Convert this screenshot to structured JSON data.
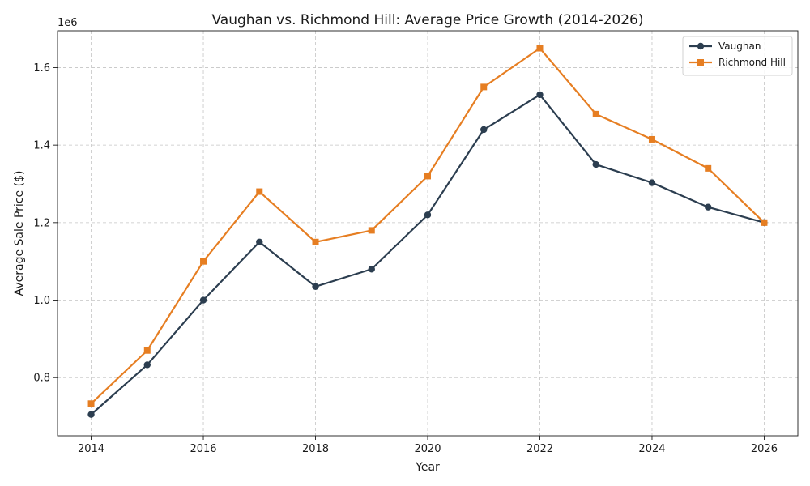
{
  "chart_data": {
    "type": "line",
    "title": "Vaughan vs. Richmond Hill: Average Price Growth (2014-2026)",
    "xlabel": "Year",
    "ylabel": "Average Sale Price ($)",
    "y_offset_label": "1e6",
    "xlim": [
      2013.4,
      2026.6
    ],
    "ylim": [
      650000,
      1695000
    ],
    "x_ticks": [
      2014,
      2016,
      2018,
      2020,
      2022,
      2024,
      2026
    ],
    "y_ticks": [
      800000,
      1000000,
      1200000,
      1400000,
      1600000
    ],
    "y_tick_labels": [
      "0.8",
      "1.0",
      "1.2",
      "1.4",
      "1.6"
    ],
    "grid": true,
    "legend_position": "top-right",
    "x": [
      2014,
      2015,
      2016,
      2017,
      2018,
      2019,
      2020,
      2021,
      2022,
      2023,
      2024,
      2025,
      2026
    ],
    "series": [
      {
        "name": "Vaughan",
        "color": "#2c3e50",
        "marker": "circle",
        "values": [
          705000,
          833000,
          1000000,
          1150000,
          1035000,
          1080000,
          1220000,
          1440000,
          1530000,
          1350000,
          1303000,
          1240000,
          1200000
        ]
      },
      {
        "name": "Richmond Hill",
        "color": "#e67e22",
        "marker": "square",
        "values": [
          733000,
          870000,
          1100000,
          1280000,
          1150000,
          1180000,
          1320000,
          1550000,
          1650000,
          1480000,
          1415000,
          1340000,
          1200000
        ]
      }
    ]
  }
}
